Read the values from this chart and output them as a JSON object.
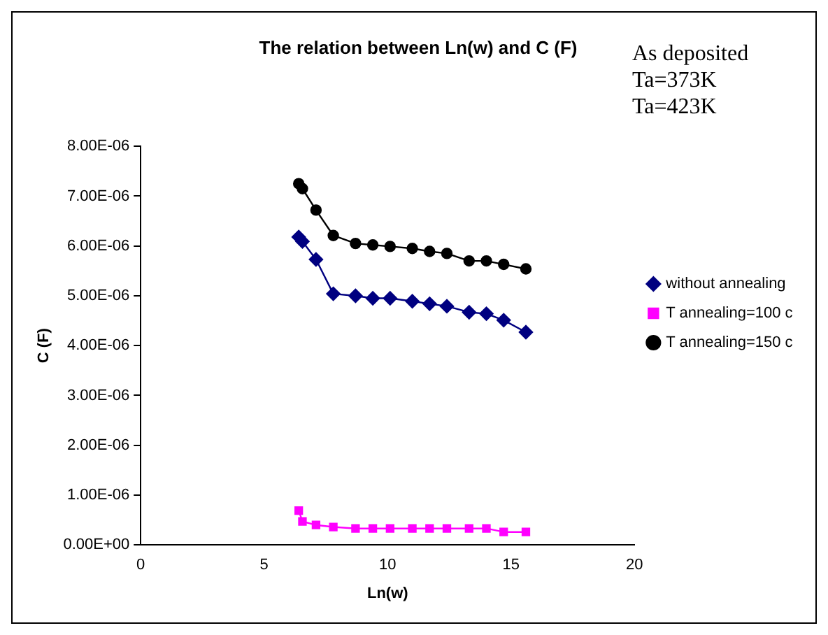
{
  "chart_data": {
    "type": "line",
    "title": "The relation between Ln(w) and C (F)",
    "xlabel": "Ln(w)",
    "ylabel": "C (F)",
    "annotations": [
      "As deposited",
      "Ta=373K",
      "Ta=423K"
    ],
    "x": [
      6.4,
      6.55,
      7.1,
      7.8,
      8.7,
      9.4,
      10.1,
      11.0,
      11.7,
      12.4,
      13.3,
      14.0,
      14.7,
      15.6
    ],
    "series": [
      {
        "name": "without annealing",
        "color": "#000080",
        "marker": "diamond",
        "values": [
          6.18e-06,
          6.09e-06,
          5.73e-06,
          5.04e-06,
          5e-06,
          4.95e-06,
          4.95e-06,
          4.89e-06,
          4.84e-06,
          4.79e-06,
          4.67e-06,
          4.64e-06,
          4.51e-06,
          4.27e-06
        ]
      },
      {
        "name": "T annealing=100 c",
        "color": "#ff00ff",
        "marker": "square",
        "values": [
          6.9e-07,
          4.7e-07,
          4e-07,
          3.6e-07,
          3.3e-07,
          3.3e-07,
          3.3e-07,
          3.3e-07,
          3.3e-07,
          3.3e-07,
          3.3e-07,
          3.3e-07,
          2.6e-07,
          2.6e-07
        ]
      },
      {
        "name": "T annealing=150 c",
        "color": "#000000",
        "marker": "circle",
        "values": [
          7.25e-06,
          7.15e-06,
          6.72e-06,
          6.21e-06,
          6.05e-06,
          6.02e-06,
          5.99e-06,
          5.95e-06,
          5.89e-06,
          5.85e-06,
          5.7e-06,
          5.7e-06,
          5.63e-06,
          5.54e-06
        ]
      }
    ],
    "xlim": [
      0,
      20
    ],
    "xticks": [
      0,
      5,
      10,
      15,
      20
    ],
    "ylim": [
      0,
      8e-06
    ],
    "yticks": [
      {
        "value": 0,
        "label": "0.00E+00"
      },
      {
        "value": 1e-06,
        "label": "1.00E-06"
      },
      {
        "value": 2e-06,
        "label": "2.00E-06"
      },
      {
        "value": 3e-06,
        "label": "3.00E-06"
      },
      {
        "value": 4e-06,
        "label": "4.00E-06"
      },
      {
        "value": 5e-06,
        "label": "5.00E-06"
      },
      {
        "value": 6e-06,
        "label": "6.00E-06"
      },
      {
        "value": 7e-06,
        "label": "7.00E-06"
      },
      {
        "value": 8e-06,
        "label": "8.00E-06"
      }
    ],
    "grid": false,
    "legend": "right",
    "line_style": "solid"
  }
}
